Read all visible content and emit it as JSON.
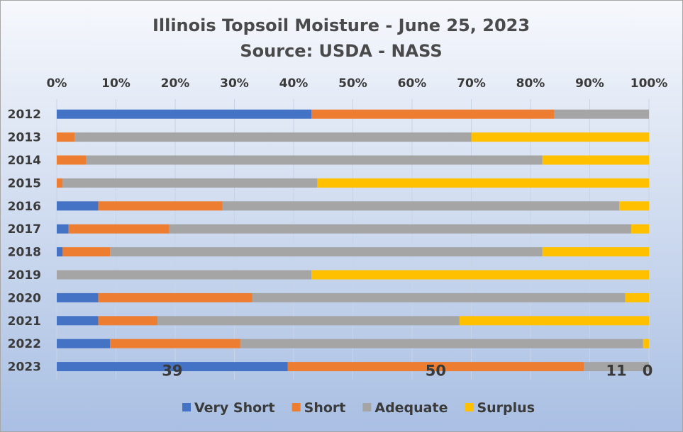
{
  "chart_data": {
    "type": "bar",
    "orientation": "horizontal",
    "stacked": "percent",
    "title": "Illinois Topsoil Moisture - June 25, 2023",
    "subtitle": "Source: USDA - NASS",
    "xlabel": "",
    "ylabel": "",
    "xlim": [
      0,
      100
    ],
    "x_ticks": [
      "0%",
      "10%",
      "20%",
      "30%",
      "40%",
      "50%",
      "60%",
      "70%",
      "80%",
      "90%",
      "100%"
    ],
    "grid": "vertical",
    "legend_position": "bottom",
    "categories": [
      "2012",
      "2013",
      "2014",
      "2015",
      "2016",
      "2017",
      "2018",
      "2019",
      "2020",
      "2021",
      "2022",
      "2023"
    ],
    "series": [
      {
        "name": "Very Short",
        "color": "#4472c4",
        "values": [
          43,
          0,
          0,
          0,
          7,
          2,
          1,
          0,
          7,
          7,
          9,
          39
        ]
      },
      {
        "name": "Short",
        "color": "#ed7d31",
        "values": [
          41,
          3,
          5,
          1,
          21,
          17,
          8,
          0,
          26,
          10,
          22,
          50
        ]
      },
      {
        "name": "Adequate",
        "color": "#a5a5a5",
        "values": [
          16,
          67,
          77,
          43,
          67,
          78,
          73,
          43,
          63,
          51,
          68,
          11
        ]
      },
      {
        "name": "Surplus",
        "color": "#ffc000",
        "values": [
          0,
          30,
          18,
          56,
          5,
          3,
          18,
          57,
          4,
          32,
          1,
          0
        ]
      }
    ],
    "data_labels": {
      "category": "2023",
      "values": [
        "39",
        "50",
        "11",
        "0"
      ]
    }
  },
  "background": {
    "top": "#f6f8fc",
    "bottom": "#a9bfe3",
    "border": "#a6a6a6"
  }
}
